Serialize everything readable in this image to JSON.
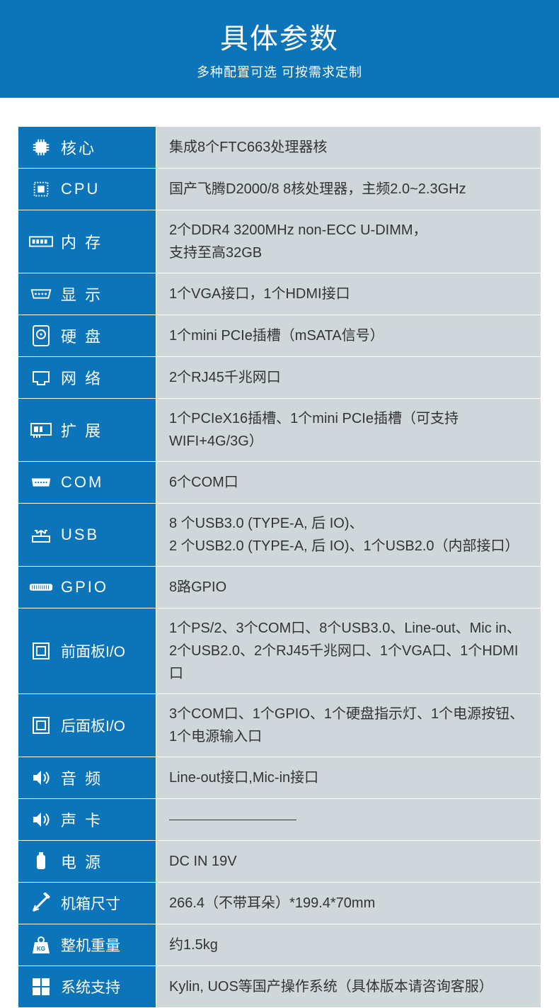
{
  "header": {
    "title": "具体参数",
    "subtitle": "多种配置可选 可按需求定制"
  },
  "colors": {
    "brand": "#0c74b9",
    "value_bg": "#d0d7db",
    "divider": "#ffffff",
    "text": "#333333"
  },
  "rows": [
    {
      "icon": "chip-icon",
      "label": "核心",
      "value": "集成8个FTC663处理器核"
    },
    {
      "icon": "cpu-icon",
      "label": "CPU",
      "value": "国产飞腾D2000/8  8核处理器，主频2.0~2.3GHz"
    },
    {
      "icon": "ram-icon",
      "label": "内 存",
      "value": "2个DDR4 3200MHz non-ECC U-DIMM，\n支持至高32GB"
    },
    {
      "icon": "vga-icon",
      "label": "显 示",
      "value": "1个VGA接口，1个HDMI接口"
    },
    {
      "icon": "hdd-icon",
      "label": "硬 盘",
      "value": "1个mini PCIe插槽（mSATA信号）"
    },
    {
      "icon": "lan-icon",
      "label": "网 络",
      "value": "2个RJ45千兆网口"
    },
    {
      "icon": "expansion-icon",
      "label": "扩 展",
      "value": "1个PCIeX16插槽、1个mini PCIe插槽（可支持WIFI+4G/3G）"
    },
    {
      "icon": "com-icon",
      "label": "COM",
      "value": "6个COM口"
    },
    {
      "icon": "usb-icon",
      "label": "USB",
      "value": "8 个USB3.0 (TYPE-A, 后 IO)、\n2 个USB2.0 (TYPE-A, 后 IO)、1个USB2.0（内部接口）"
    },
    {
      "icon": "gpio-icon",
      "label": "GPIO",
      "value": "8路GPIO"
    },
    {
      "icon": "front-io-icon",
      "label": "前面板I/O",
      "tight": true,
      "value": "1个PS/2、3个COM口、8个USB3.0、Line-out、Mic in、\n2个USB2.0、2个RJ45千兆网口、1个VGA口、1个HDMI口"
    },
    {
      "icon": "rear-io-icon",
      "label": "后面板I/O",
      "tight": true,
      "value": "3个COM口、1个GPIO、1个硬盘指示灯、1个电源按钮、\n1个电源输入口"
    },
    {
      "icon": "audio-icon",
      "label": "音 频",
      "value": "Line-out接口,Mic-in接口"
    },
    {
      "icon": "sound-icon",
      "label": "声 卡",
      "dash": true
    },
    {
      "icon": "power-icon",
      "label": "电 源",
      "value": "DC IN 19V"
    },
    {
      "icon": "size-icon",
      "label": "机箱尺寸",
      "tight": true,
      "value": "266.4（不带耳朵）*199.4*70mm"
    },
    {
      "icon": "weight-icon",
      "label": "整机重量",
      "tight": true,
      "value": "约1.5kg"
    },
    {
      "icon": "os-icon",
      "label": "系统支持",
      "tight": true,
      "value": "Kylin, UOS等国产操作系统（具体版本请咨询客服）"
    }
  ]
}
